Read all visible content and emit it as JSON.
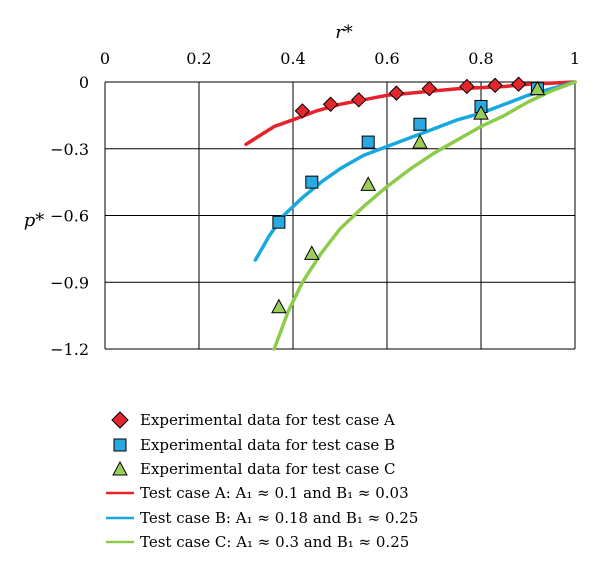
{
  "chart_data": {
    "type": "scatter",
    "xlabel": "r*",
    "ylabel": "p*",
    "xlim": [
      0,
      1
    ],
    "ylim": [
      -1.2,
      0
    ],
    "x_axis_position": "top",
    "grid": true,
    "x_ticks": [
      "0",
      "0.2",
      "0.4",
      "0.6",
      "0.8",
      "1"
    ],
    "y_ticks": [
      "0",
      "−0.3",
      "−0.6",
      "−0.9",
      "−1.2"
    ],
    "x_tick_values": [
      0,
      0.2,
      0.4,
      0.6,
      0.8,
      1
    ],
    "y_tick_values": [
      0,
      -0.3,
      -0.6,
      -0.9,
      -1.2
    ],
    "legend_position": "bottom",
    "series": [
      {
        "name": "Experimental data for test case A",
        "kind": "markers",
        "marker": "diamond",
        "color": "#e3262d",
        "x": [
          0.42,
          0.48,
          0.54,
          0.62,
          0.69,
          0.77,
          0.83,
          0.88
        ],
        "y": [
          -0.13,
          -0.1,
          -0.08,
          -0.05,
          -0.03,
          -0.02,
          -0.015,
          -0.01
        ]
      },
      {
        "name": "Experimental data for test case B",
        "kind": "markers",
        "marker": "square",
        "color": "#2aa8e0",
        "x": [
          0.37,
          0.44,
          0.56,
          0.67,
          0.8,
          0.92
        ],
        "y": [
          -0.63,
          -0.45,
          -0.27,
          -0.19,
          -0.11,
          -0.03
        ]
      },
      {
        "name": "Experimental data for test case C",
        "kind": "markers",
        "marker": "triangle",
        "color": "#9ccc5a",
        "x": [
          0.37,
          0.44,
          0.56,
          0.67,
          0.8,
          0.92
        ],
        "y": [
          -1.01,
          -0.77,
          -0.46,
          -0.27,
          -0.14,
          -0.03
        ]
      },
      {
        "name": "Test case A: A₁ ≈ 0.1 and B₁ ≈ 0.03",
        "kind": "line",
        "color": "#e8222a",
        "x": [
          0.3,
          0.33,
          0.36,
          0.4,
          0.45,
          0.5,
          0.55,
          0.6,
          0.65,
          0.7,
          0.75,
          0.8,
          0.85,
          0.9,
          0.95,
          1.0
        ],
        "y": [
          -0.28,
          -0.24,
          -0.2,
          -0.17,
          -0.13,
          -0.1,
          -0.08,
          -0.06,
          -0.05,
          -0.04,
          -0.03,
          -0.025,
          -0.02,
          -0.01,
          -0.005,
          0
        ]
      },
      {
        "name": "Test case B: A₁ ≈ 0.18 and B₁ ≈ 0.25",
        "kind": "line",
        "color": "#18a8e0",
        "x": [
          0.32,
          0.35,
          0.38,
          0.42,
          0.46,
          0.5,
          0.55,
          0.6,
          0.65,
          0.7,
          0.75,
          0.8,
          0.85,
          0.9,
          0.95,
          1.0
        ],
        "y": [
          -0.8,
          -0.69,
          -0.6,
          -0.52,
          -0.45,
          -0.39,
          -0.33,
          -0.29,
          -0.25,
          -0.21,
          -0.17,
          -0.14,
          -0.1,
          -0.06,
          -0.03,
          0
        ]
      },
      {
        "name": "Test case C: A₁ ≈ 0.3 and B₁ ≈ 0.25",
        "kind": "line",
        "color": "#8dcc4a",
        "x": [
          0.36,
          0.39,
          0.42,
          0.46,
          0.5,
          0.55,
          0.6,
          0.65,
          0.7,
          0.75,
          0.8,
          0.85,
          0.9,
          0.95,
          1.0
        ],
        "y": [
          -1.2,
          -1.03,
          -0.9,
          -0.77,
          -0.66,
          -0.56,
          -0.47,
          -0.39,
          -0.32,
          -0.26,
          -0.2,
          -0.15,
          -0.09,
          -0.04,
          0
        ]
      }
    ]
  },
  "legend": {
    "items": [
      {
        "marker": "diamond",
        "color": "#e3262d",
        "label": "Experimental data for test case A"
      },
      {
        "marker": "square",
        "color": "#2aa8e0",
        "label": "Experimental data for test case B"
      },
      {
        "marker": "triangle",
        "color": "#9ccc5a",
        "label": "Experimental data for test case C"
      },
      {
        "marker": "line",
        "color": "#e8222a",
        "label": "Test case A: A₁ ≈ 0.1 and B₁ ≈ 0.03"
      },
      {
        "marker": "line",
        "color": "#18a8e0",
        "label": "Test case B: A₁ ≈ 0.18 and B₁ ≈ 0.25"
      },
      {
        "marker": "line",
        "color": "#8dcc4a",
        "label": "Test case C: A₁ ≈ 0.3 and B₁ ≈ 0.25"
      }
    ]
  }
}
